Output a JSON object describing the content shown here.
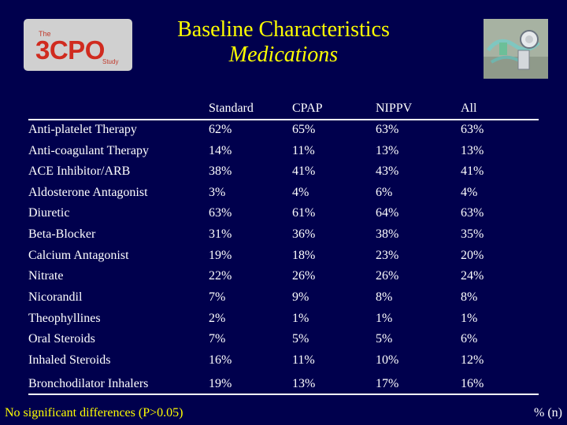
{
  "logo": {
    "the": "The",
    "main": "3CPO",
    "study": "Study"
  },
  "title": "Baseline Characteristics",
  "subtitle": "Medications",
  "table": {
    "headers": [
      "",
      "Standard",
      "CPAP",
      "NIPPV",
      "All"
    ],
    "rows": [
      [
        "Anti-platelet Therapy",
        "62%",
        "65%",
        "63%",
        "63%"
      ],
      [
        "Anti-coagulant Therapy",
        "14%",
        "11%",
        "13%",
        "13%"
      ],
      [
        "ACE Inhibitor/ARB",
        "38%",
        "41%",
        "43%",
        "41%"
      ],
      [
        "Aldosterone Antagonist",
        "3%",
        "4%",
        "6%",
        "4%"
      ],
      [
        "Diuretic",
        "63%",
        "61%",
        "64%",
        "63%"
      ],
      [
        "Beta-Blocker",
        "31%",
        "36%",
        "38%",
        "35%"
      ],
      [
        "Calcium Antagonist",
        "19%",
        "18%",
        "23%",
        "20%"
      ],
      [
        "Nitrate",
        "22%",
        "26%",
        "26%",
        "24%"
      ],
      [
        "Nicorandil",
        "7%",
        "9%",
        "8%",
        "8%"
      ],
      [
        "Theophyllines",
        "2%",
        "1%",
        "1%",
        "1%"
      ],
      [
        "Oral Steroids",
        "7%",
        "5%",
        "5%",
        "6%"
      ],
      [
        "Inhaled Steroids",
        "16%",
        "11%",
        "10%",
        "12%"
      ],
      [
        "Bronchodilator Inhalers",
        "19%",
        "13%",
        "17%",
        "16%"
      ]
    ]
  },
  "footnote": "No significant differences (P>0.05)",
  "unit_note": "% (n)",
  "colors": {
    "background": "#00004d",
    "title": "#ffff00",
    "text": "#ffffff",
    "logo_red": "#d02b1f"
  }
}
